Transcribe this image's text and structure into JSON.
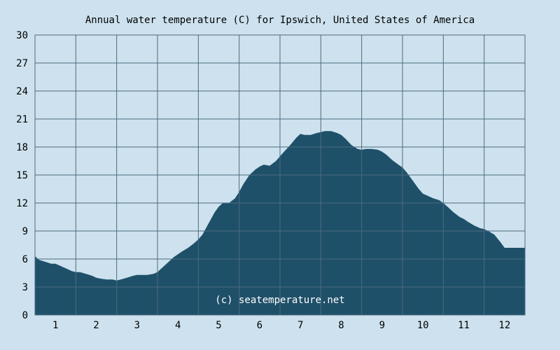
{
  "chart_data": {
    "type": "area",
    "title": "Annual water temperature (C) for Ipswich, United States of America",
    "watermark": "(c) seatemperature.net",
    "xlabel": "",
    "ylabel": "",
    "x_tick_labels": [
      "1",
      "2",
      "3",
      "4",
      "5",
      "6",
      "7",
      "8",
      "9",
      "10",
      "11",
      "12"
    ],
    "y_tick_labels": [
      "0",
      "3",
      "6",
      "9",
      "12",
      "15",
      "18",
      "21",
      "24",
      "27",
      "30"
    ],
    "ylim": [
      0,
      30
    ],
    "xlim": [
      0.5,
      12.5
    ],
    "grid": true,
    "colors": {
      "background": "#cde2ee",
      "area": "#1f5069",
      "grid": "#4c6a80"
    },
    "series": [
      {
        "x": [
          0.5,
          0.6,
          0.75,
          0.9,
          1.0,
          1.1,
          1.25,
          1.4,
          1.5,
          1.6,
          1.75,
          1.9,
          2.0,
          2.1,
          2.25,
          2.4,
          2.5,
          2.6,
          2.75,
          2.9,
          3.0,
          3.1,
          3.25,
          3.4,
          3.5,
          3.6,
          3.75,
          3.9,
          4.0,
          4.1,
          4.25,
          4.4,
          4.5,
          4.6,
          4.75,
          4.9,
          5.0,
          5.1,
          5.25,
          5.4,
          5.5,
          5.6,
          5.75,
          5.9,
          6.0,
          6.1,
          6.25,
          6.4,
          6.5,
          6.6,
          6.75,
          6.9,
          7.0,
          7.1,
          7.25,
          7.4,
          7.5,
          7.6,
          7.75,
          7.9,
          8.0,
          8.1,
          8.25,
          8.4,
          8.5,
          8.6,
          8.75,
          8.9,
          9.0,
          9.1,
          9.25,
          9.4,
          9.5,
          9.6,
          9.75,
          9.9,
          10.0,
          10.1,
          10.25,
          10.4,
          10.5,
          10.6,
          10.75,
          10.9,
          11.0,
          11.1,
          11.25,
          11.4,
          11.5,
          11.6,
          11.75,
          11.9,
          12.0,
          12.1,
          12.25,
          12.4,
          12.5
        ],
        "values": [
          6.3,
          5.9,
          5.7,
          5.5,
          5.5,
          5.3,
          5.0,
          4.7,
          4.6,
          4.6,
          4.4,
          4.2,
          4.0,
          3.9,
          3.8,
          3.8,
          3.7,
          3.8,
          4.0,
          4.2,
          4.3,
          4.3,
          4.3,
          4.4,
          4.6,
          5.0,
          5.6,
          6.2,
          6.5,
          6.8,
          7.2,
          7.7,
          8.1,
          8.6,
          9.8,
          11.0,
          11.6,
          12.0,
          12.0,
          12.5,
          13.2,
          14.0,
          15.0,
          15.6,
          15.9,
          16.1,
          16.0,
          16.5,
          17.0,
          17.5,
          18.2,
          19.0,
          19.4,
          19.3,
          19.3,
          19.5,
          19.6,
          19.7,
          19.7,
          19.5,
          19.3,
          18.9,
          18.2,
          17.8,
          17.7,
          17.8,
          17.8,
          17.7,
          17.5,
          17.2,
          16.6,
          16.1,
          15.8,
          15.3,
          14.4,
          13.5,
          13.0,
          12.8,
          12.5,
          12.3,
          12.0,
          11.6,
          11.0,
          10.5,
          10.3,
          10.0,
          9.6,
          9.3,
          9.2,
          9.0,
          8.6,
          7.8,
          7.2,
          7.2,
          7.2,
          7.2,
          7.2
        ]
      }
    ]
  }
}
